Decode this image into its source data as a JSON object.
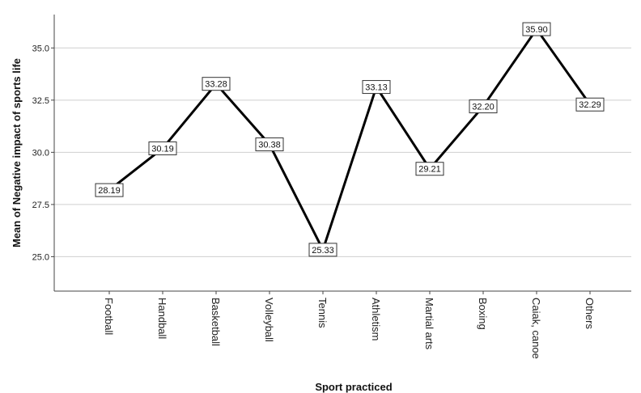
{
  "chart_data": {
    "type": "line",
    "xlabel": "Sport practiced",
    "ylabel": "Mean of Negative impact of sports life",
    "categories": [
      "Football",
      "Handball",
      "Basketball",
      "Volleyball",
      "Tennis",
      "Athletism",
      "Martial arts",
      "Boxing",
      "Caiak, canoe",
      "Others"
    ],
    "values": [
      28.19,
      30.19,
      33.28,
      30.38,
      25.33,
      33.13,
      29.21,
      32.2,
      35.9,
      32.29
    ],
    "data_labels": [
      "28.19",
      "30.19",
      "33.28",
      "30.38",
      "25.33",
      "33.13",
      "29.21",
      "32.20",
      "35.90",
      "32.29"
    ],
    "ylim": [
      23.35,
      36.6
    ],
    "yticks": [
      25.0,
      27.5,
      30.0,
      32.5,
      35.0
    ],
    "ytick_labels": [
      "25.0",
      "27.5",
      "30.0",
      "32.5",
      "35.0"
    ],
    "grid": true,
    "line_color": "#000000"
  }
}
